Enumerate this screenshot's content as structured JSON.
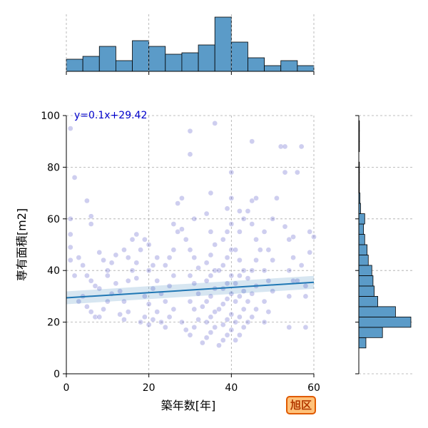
{
  "badge_label": "旭区",
  "chart_data": {
    "type": "scatter",
    "xlabel": "築年数[年]",
    "ylabel": "専有面積[m2]",
    "xlim": [
      0,
      60
    ],
    "ylim": [
      0,
      100
    ],
    "xticks": [
      0,
      20,
      40,
      60
    ],
    "yticks": [
      0,
      20,
      40,
      60,
      80,
      100
    ],
    "grid": true,
    "regression": {
      "label": "y=0.1x+29.42",
      "slope": 0.1,
      "intercept": 29.42,
      "color": "#1f77b4"
    },
    "point_color": "#3b3bbf",
    "hist_color": "#5b9bc8",
    "top_histogram": {
      "bin_edges": [
        0,
        4,
        8,
        12,
        16,
        20,
        24,
        28,
        32,
        36,
        40,
        44,
        48,
        52,
        56,
        60
      ],
      "counts": [
        17,
        21,
        35,
        15,
        43,
        35,
        24,
        26,
        37,
        76,
        41,
        19,
        8,
        15,
        8
      ]
    },
    "right_histogram": {
      "bin_edges": [
        10,
        14,
        18,
        22,
        26,
        30,
        34,
        38,
        42,
        46,
        50,
        54,
        58,
        62,
        66,
        70,
        74,
        78,
        82,
        86,
        90,
        94,
        98
      ],
      "counts": [
        12,
        40,
        88,
        62,
        32,
        26,
        24,
        22,
        16,
        14,
        10,
        8,
        10,
        3,
        2,
        1,
        1,
        1,
        0,
        1,
        1,
        1,
        1
      ]
    },
    "points": [
      [
        1,
        95
      ],
      [
        2,
        76
      ],
      [
        1,
        60
      ],
      [
        5,
        67
      ],
      [
        6,
        61
      ],
      [
        6,
        58
      ],
      [
        1,
        54
      ],
      [
        1,
        49
      ],
      [
        1,
        44
      ],
      [
        3,
        45
      ],
      [
        2,
        38
      ],
      [
        4,
        42
      ],
      [
        5,
        38
      ],
      [
        6,
        36
      ],
      [
        7,
        34
      ],
      [
        8,
        33
      ],
      [
        4,
        30
      ],
      [
        3,
        28
      ],
      [
        5,
        26
      ],
      [
        6,
        24
      ],
      [
        7,
        22
      ],
      [
        8,
        22
      ],
      [
        9,
        25
      ],
      [
        10,
        28
      ],
      [
        11,
        31
      ],
      [
        12,
        35
      ],
      [
        10,
        40
      ],
      [
        11,
        43
      ],
      [
        12,
        46
      ],
      [
        9,
        44
      ],
      [
        8,
        47
      ],
      [
        10,
        38
      ],
      [
        13,
        23
      ],
      [
        14,
        21
      ],
      [
        15,
        24
      ],
      [
        14,
        28
      ],
      [
        13,
        32
      ],
      [
        15,
        36
      ],
      [
        16,
        40
      ],
      [
        17,
        43
      ],
      [
        14,
        48
      ],
      [
        16,
        52
      ],
      [
        17,
        54
      ],
      [
        15,
        45
      ],
      [
        18,
        20
      ],
      [
        19,
        22
      ],
      [
        20,
        19
      ],
      [
        21,
        21
      ],
      [
        22,
        24
      ],
      [
        20,
        27
      ],
      [
        19,
        30
      ],
      [
        21,
        33
      ],
      [
        22,
        36
      ],
      [
        20,
        40
      ],
      [
        21,
        42
      ],
      [
        22,
        45
      ],
      [
        20,
        50
      ],
      [
        19,
        52
      ],
      [
        18,
        48
      ],
      [
        17,
        37
      ],
      [
        23,
        20
      ],
      [
        24,
        18
      ],
      [
        25,
        22
      ],
      [
        26,
        25
      ],
      [
        24,
        28
      ],
      [
        23,
        31
      ],
      [
        25,
        34
      ],
      [
        26,
        38
      ],
      [
        24,
        42
      ],
      [
        25,
        45
      ],
      [
        26,
        48
      ],
      [
        27,
        55
      ],
      [
        26,
        58
      ],
      [
        27,
        66
      ],
      [
        28,
        68
      ],
      [
        30,
        94
      ],
      [
        30,
        85
      ],
      [
        28,
        20
      ],
      [
        29,
        17
      ],
      [
        30,
        15
      ],
      [
        31,
        18
      ],
      [
        32,
        21
      ],
      [
        31,
        25
      ],
      [
        30,
        28
      ],
      [
        32,
        31
      ],
      [
        31,
        35
      ],
      [
        30,
        38
      ],
      [
        32,
        41
      ],
      [
        31,
        45
      ],
      [
        30,
        48
      ],
      [
        29,
        52
      ],
      [
        28,
        56
      ],
      [
        31,
        60
      ],
      [
        33,
        12
      ],
      [
        34,
        14
      ],
      [
        35,
        16
      ],
      [
        36,
        18
      ],
      [
        34,
        20
      ],
      [
        35,
        22
      ],
      [
        36,
        24
      ],
      [
        33,
        26
      ],
      [
        34,
        28
      ],
      [
        35,
        30
      ],
      [
        36,
        33
      ],
      [
        34,
        36
      ],
      [
        35,
        38
      ],
      [
        36,
        40
      ],
      [
        34,
        43
      ],
      [
        35,
        46
      ],
      [
        36,
        50
      ],
      [
        35,
        55
      ],
      [
        34,
        62
      ],
      [
        35,
        70
      ],
      [
        36,
        97
      ],
      [
        37,
        11
      ],
      [
        38,
        13
      ],
      [
        39,
        15
      ],
      [
        40,
        17
      ],
      [
        38,
        19
      ],
      [
        39,
        21
      ],
      [
        40,
        23
      ],
      [
        37,
        25
      ],
      [
        38,
        27
      ],
      [
        39,
        29
      ],
      [
        40,
        31
      ],
      [
        38,
        33
      ],
      [
        39,
        35
      ],
      [
        40,
        38
      ],
      [
        37,
        40
      ],
      [
        38,
        42
      ],
      [
        39,
        45
      ],
      [
        40,
        48
      ],
      [
        38,
        52
      ],
      [
        39,
        55
      ],
      [
        40,
        58
      ],
      [
        39,
        64
      ],
      [
        40,
        68
      ],
      [
        40,
        78
      ],
      [
        41,
        13
      ],
      [
        42,
        15
      ],
      [
        43,
        18
      ],
      [
        41,
        20
      ],
      [
        42,
        22
      ],
      [
        43,
        25
      ],
      [
        41,
        28
      ],
      [
        42,
        30
      ],
      [
        43,
        32
      ],
      [
        41,
        35
      ],
      [
        42,
        38
      ],
      [
        43,
        40
      ],
      [
        42,
        44
      ],
      [
        41,
        48
      ],
      [
        42,
        55
      ],
      [
        43,
        60
      ],
      [
        42,
        63
      ],
      [
        44,
        63
      ],
      [
        45,
        67
      ],
      [
        46,
        68
      ],
      [
        44,
        20
      ],
      [
        45,
        22
      ],
      [
        46,
        25
      ],
      [
        44,
        28
      ],
      [
        45,
        31
      ],
      [
        46,
        34
      ],
      [
        44,
        37
      ],
      [
        45,
        40
      ],
      [
        46,
        44
      ],
      [
        47,
        48
      ],
      [
        46,
        52
      ],
      [
        45,
        58
      ],
      [
        45,
        90
      ],
      [
        48,
        20
      ],
      [
        49,
        24
      ],
      [
        48,
        28
      ],
      [
        50,
        32
      ],
      [
        49,
        36
      ],
      [
        48,
        40
      ],
      [
        50,
        44
      ],
      [
        49,
        48
      ],
      [
        48,
        55
      ],
      [
        50,
        60
      ],
      [
        51,
        68
      ],
      [
        52,
        88
      ],
      [
        53,
        88
      ],
      [
        53,
        78
      ],
      [
        54,
        18
      ],
      [
        54,
        30
      ],
      [
        55,
        36
      ],
      [
        54,
        40
      ],
      [
        55,
        45
      ],
      [
        54,
        52
      ],
      [
        53,
        57
      ],
      [
        55,
        53
      ],
      [
        56,
        78
      ],
      [
        57,
        88
      ],
      [
        56,
        36
      ],
      [
        57,
        42
      ],
      [
        58,
        34
      ],
      [
        58,
        30
      ],
      [
        58,
        18
      ],
      [
        59,
        55
      ],
      [
        59,
        47
      ],
      [
        60,
        53
      ]
    ]
  }
}
